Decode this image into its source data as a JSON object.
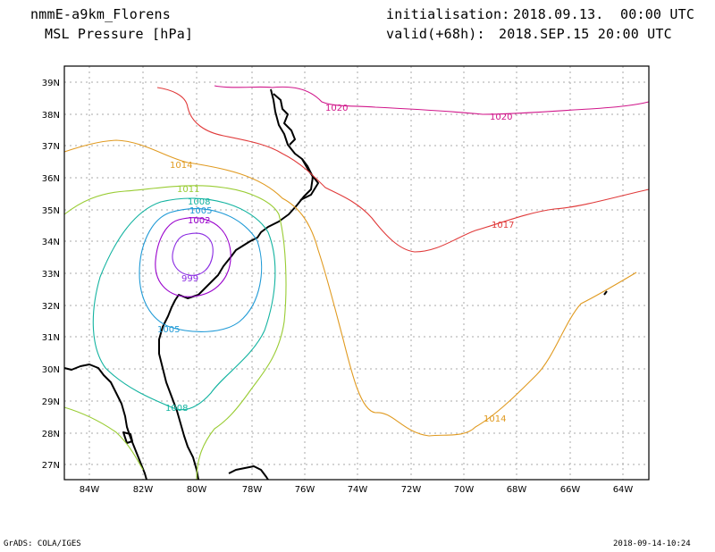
{
  "header": {
    "model": "nmmE-a9km_Florens",
    "variable": "MSL Pressure [hPa]",
    "init_label": "initialisation:",
    "init_value": "2018.09.13.  00:00 UTC",
    "valid_label": "valid(+68h):",
    "valid_value": "2018.SEP.15 20:00 UTC"
  },
  "footer": {
    "credit": "GrADS: COLA/IGES",
    "timestamp": "2018-09-14-10:24"
  },
  "map": {
    "lat_labels": [
      "39N",
      "38N",
      "37N",
      "36N",
      "35N",
      "34N",
      "33N",
      "32N",
      "31N",
      "30N",
      "29N",
      "28N",
      "27N"
    ],
    "lon_labels": [
      "84W",
      "82W",
      "80W",
      "78W",
      "76W",
      "74W",
      "72W",
      "70W",
      "68W",
      "66W",
      "64W"
    ],
    "grid": true,
    "contours": [
      {
        "label": "999",
        "color": "#8a2be2"
      },
      {
        "label": "1002",
        "color": "#9900cc"
      },
      {
        "label": "1005",
        "color": "#1f9ad6"
      },
      {
        "label": "1008",
        "color": "#13b3a0"
      },
      {
        "label": "1011",
        "color": "#99cc33"
      },
      {
        "label": "1014",
        "color": "#e09a20"
      },
      {
        "label": "1017",
        "color": "#e03a3a"
      },
      {
        "label": "1020",
        "color": "#d0168a"
      }
    ]
  }
}
